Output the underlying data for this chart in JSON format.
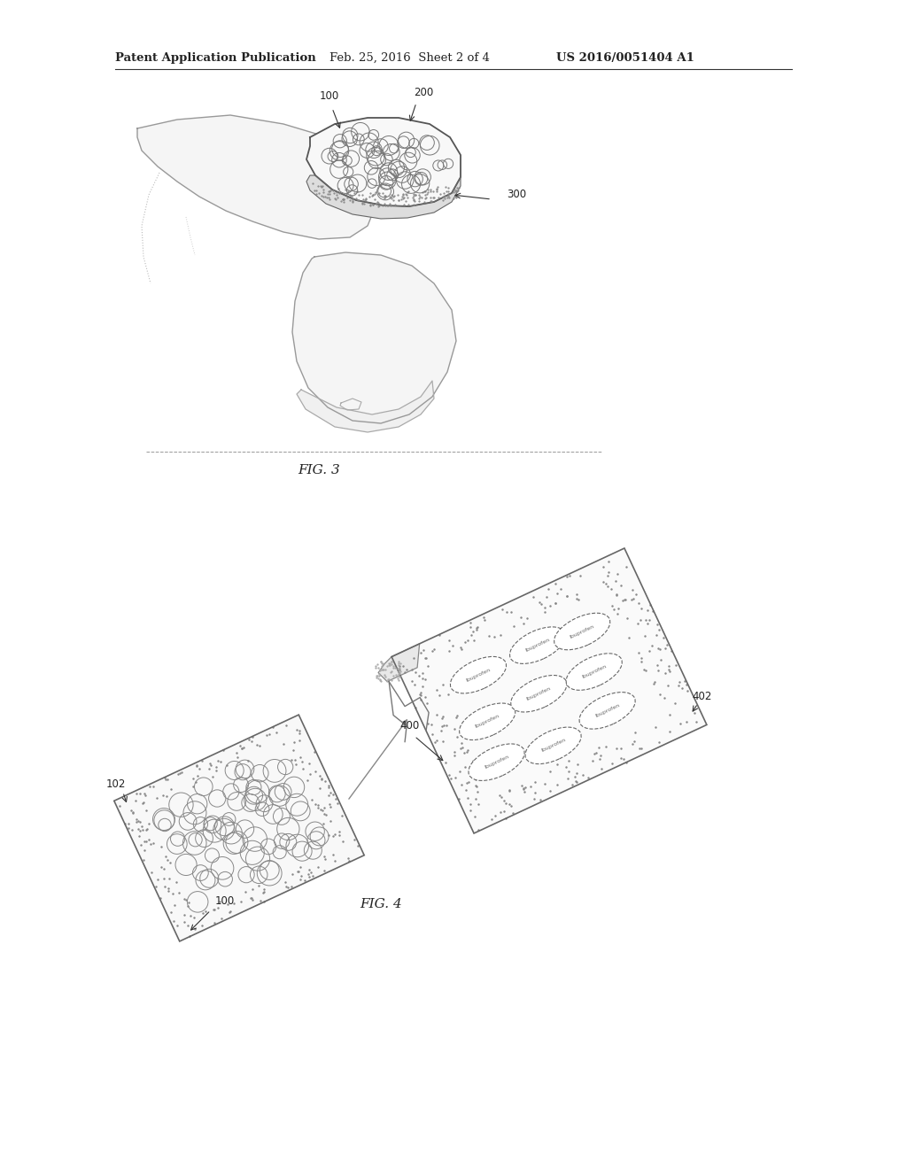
{
  "bg_color": "#ffffff",
  "header_left": "Patent Application Publication",
  "header_mid": "Feb. 25, 2016  Sheet 2 of 4",
  "header_right": "US 2016/0051404 A1",
  "header_fontsize": 9.5,
  "fig3_caption": "FIG. 3",
  "fig4_caption": "FIG. 4",
  "label_100_fig3": "100",
  "label_200_fig3": "200",
  "label_300_fig3": "300",
  "label_100_fig4": "100",
  "label_102_fig4": "102",
  "label_400_fig4": "400",
  "label_402_fig4": "402",
  "line_color": "#333333",
  "text_color": "#222222",
  "stipple_color": "#777777",
  "body_color": "#888888",
  "compress_fill": "#f8f8f8",
  "band_fill": "#cccccc"
}
